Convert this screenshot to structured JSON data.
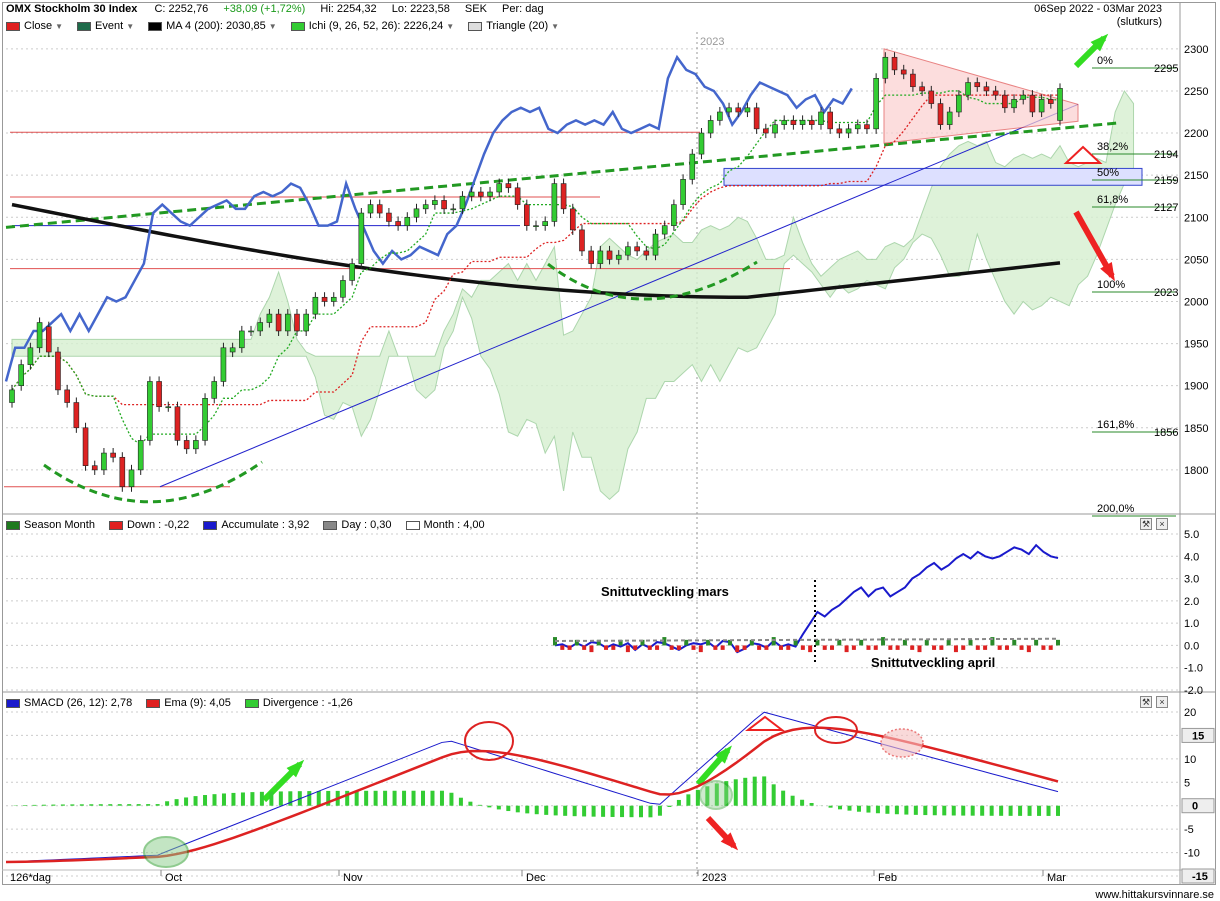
{
  "header": {
    "title": "OMX Stockholm 30 Index",
    "close": "C: 2252,76",
    "change": "+38,09 (+1,72%)",
    "high": "Hi: 2254,32",
    "low": "Lo: 2223,58",
    "currency": "SEK",
    "period": "Per: dag",
    "date_range": "06Sep 2022 - 03Mar 2023",
    "slutkurs": "(slutkurs)"
  },
  "legend1": [
    {
      "label": "Close",
      "color": "#e02020"
    },
    {
      "label": "Event",
      "color": "#1e6b4a"
    },
    {
      "label": "MA 4 (200): 2030,85",
      "color": "#000000"
    },
    {
      "label": "Ichi (9, 26, 52, 26): 2226,24",
      "color": "#33cc33"
    },
    {
      "label": "Triangle (20)",
      "color": "#dddddd"
    }
  ],
  "legend2": [
    {
      "label": "Season Month",
      "color": "#1e7a1e"
    },
    {
      "label": "Down : -0,22",
      "color": "#e02020"
    },
    {
      "label": "Accumulate : 3,92",
      "color": "#1a1acc"
    },
    {
      "label": "Day : 0,30",
      "color": "#888888"
    },
    {
      "label": "Month : 4,00",
      "color": "#ffffff"
    }
  ],
  "legend3": [
    {
      "label": "SMACD (26, 12): 2,78",
      "color": "#1a1acc"
    },
    {
      "label": "Ema (9): 4,05",
      "color": "#e02020"
    },
    {
      "label": "Divergence : -1,26",
      "color": "#33cc33"
    }
  ],
  "x_labels": [
    "126*dag",
    "Oct",
    "Nov",
    "Dec",
    "2023",
    "Feb",
    "Mar"
  ],
  "year_marker": "2023",
  "fib_labels": [
    "0%",
    "38,2%",
    "50%",
    "61,8%",
    "100%",
    "161,8%",
    "200,0%"
  ],
  "fib_values": [
    "2295",
    "2194",
    "2159",
    "2127",
    "2023",
    "1856",
    ""
  ],
  "annotations": {
    "mars": "Snittutveckling mars",
    "april": "Snittutveckling april"
  },
  "website": "www.hittakursvinnare.se",
  "chart_data": [
    {
      "type": "candlestick",
      "title": "OMX Stockholm 30 Index",
      "ylim": [
        1750,
        2320
      ],
      "y_ticks": [
        1800,
        1850,
        1900,
        1950,
        2000,
        2050,
        2100,
        2150,
        2200,
        2250,
        2300
      ],
      "close": [
        1895,
        1925,
        1945,
        1975,
        1940,
        1895,
        1880,
        1850,
        1805,
        1800,
        1820,
        1815,
        1780,
        1800,
        1835,
        1905,
        1875,
        1875,
        1835,
        1825,
        1835,
        1885,
        1905,
        1945,
        1945,
        1965,
        1965,
        1975,
        1985,
        1965,
        1985,
        1965,
        1985,
        2005,
        2000,
        2005,
        2025,
        2045,
        2105,
        2115,
        2105,
        2095,
        2090,
        2100,
        2110,
        2115,
        2120,
        2110,
        2110,
        2125,
        2130,
        2125,
        2130,
        2140,
        2135,
        2115,
        2090,
        2090,
        2095,
        2140,
        2110,
        2085,
        2060,
        2045,
        2060,
        2050,
        2055,
        2065,
        2060,
        2055,
        2080,
        2090,
        2115,
        2145,
        2175,
        2200,
        2215,
        2225,
        2230,
        2225,
        2230,
        2205,
        2200,
        2210,
        2215,
        2210,
        2215,
        2210,
        2225,
        2205,
        2200,
        2205,
        2210,
        2205,
        2265,
        2290,
        2275,
        2270,
        2255,
        2250,
        2235,
        2210,
        2225,
        2245,
        2260,
        2255,
        2250,
        2245,
        2230,
        2240,
        2245,
        2225,
        2240,
        2235,
        2253
      ],
      "open": [
        1880,
        1900,
        1925,
        1945,
        1970,
        1940,
        1895,
        1880,
        1850,
        1805,
        1800,
        1820,
        1815,
        1780,
        1800,
        1835,
        1905,
        1875,
        1875,
        1835,
        1825,
        1835,
        1885,
        1905,
        1940,
        1945,
        1965,
        1965,
        1975,
        1985,
        1965,
        1985,
        1965,
        1985,
        2005,
        2000,
        2005,
        2025,
        2045,
        2105,
        2115,
        2105,
        2095,
        2090,
        2100,
        2110,
        2115,
        2120,
        2110,
        2110,
        2125,
        2130,
        2125,
        2130,
        2140,
        2135,
        2115,
        2090,
        2090,
        2095,
        2140,
        2110,
        2085,
        2060,
        2045,
        2060,
        2050,
        2055,
        2065,
        2060,
        2055,
        2080,
        2090,
        2115,
        2145,
        2175,
        2200,
        2215,
        2225,
        2230,
        2225,
        2230,
        2205,
        2200,
        2210,
        2215,
        2210,
        2215,
        2210,
        2225,
        2205,
        2200,
        2205,
        2210,
        2205,
        2265,
        2290,
        2275,
        2270,
        2255,
        2250,
        2235,
        2210,
        2225,
        2245,
        2260,
        2255,
        2250,
        2245,
        2230,
        2240,
        2245,
        2225,
        2240,
        2215
      ],
      "ma200_value": "2030,85",
      "ichi_value": "2226,24"
    },
    {
      "type": "bar_line",
      "title": "Season Month",
      "ylim": [
        -2.0,
        5.0
      ],
      "y_ticks": [
        -2.0,
        -1.0,
        0,
        1.0,
        2.0,
        3.0,
        4.0,
        5.0
      ],
      "accumulate": [
        0,
        0.05,
        -0.1,
        0.1,
        -0.05,
        0.15,
        0.1,
        -0.1,
        0.05,
        -0.05,
        0.1,
        -0.2,
        0.05,
        -0.1,
        0.15,
        0.1,
        -0.05,
        -0.2,
        0,
        0.1,
        0.05,
        0.15,
        -0.1,
        0.2,
        0.15,
        -0.3,
        -0.15,
        0.1,
        0.05,
        -0.1,
        0.2,
        -0.05,
        0.05,
        -0.05,
        0.5,
        1.0,
        1.5,
        1.3,
        1.6,
        1.8,
        2.1,
        2.4,
        2.6,
        2.2,
        2.5,
        2.6,
        2.2,
        2.4,
        2.6,
        3.0,
        3.2,
        3.5,
        3.7,
        3.4,
        3.6,
        3.9,
        4.1,
        3.9,
        4.2,
        4.0,
        3.9,
        4.0,
        4.2,
        4.4,
        4.3,
        4.1,
        4.5,
        4.2,
        4.0,
        3.92
      ],
      "down_value": "-0,22",
      "day_value": "0,30",
      "month_value": "4,00"
    },
    {
      "type": "line_bar",
      "title": "SMACD (26, 12)",
      "ylim": [
        -15,
        20
      ],
      "y_ticks": [
        -15,
        -10,
        -5.0,
        0,
        5.0,
        10,
        15,
        20
      ],
      "smacd_value": "2,78",
      "ema_value": "4,05",
      "divergence_value": "-1,26"
    }
  ]
}
